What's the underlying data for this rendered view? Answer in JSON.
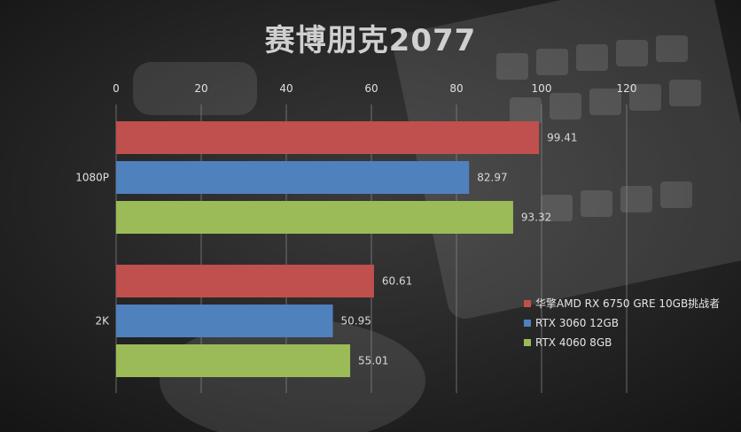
{
  "chart_data": {
    "type": "bar",
    "orientation": "horizontal",
    "title": "赛博朋克2077",
    "categories": [
      "1080P",
      "2K"
    ],
    "series": [
      {
        "name": "华擎AMD RX 6750 GRE 10GB挑战者",
        "color": "#c0504d",
        "values": [
          99.41,
          60.61
        ]
      },
      {
        "name": "RTX 3060 12GB",
        "color": "#4f81bd",
        "values": [
          82.97,
          50.95
        ]
      },
      {
        "name": "RTX 4060 8GB",
        "color": "#9bbb59",
        "values": [
          93.32,
          55.01
        ]
      }
    ],
    "xlim": [
      0,
      120
    ],
    "xticks": [
      0,
      20,
      40,
      60,
      80,
      100,
      120
    ],
    "xaxis_position": "top",
    "grid": true,
    "legend_position": "right"
  }
}
